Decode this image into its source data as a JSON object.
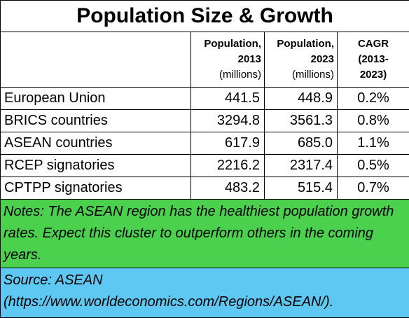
{
  "title": "Population Size & Growth",
  "headers": {
    "pop2013": [
      "Population,",
      "2013",
      "(millions)"
    ],
    "pop2023": [
      "Population,",
      "2023",
      "(millions)"
    ],
    "cagr": [
      "CAGR",
      "(2013-",
      "2023)"
    ]
  },
  "rows": [
    {
      "label": "European Union",
      "pop2013": "441.5",
      "pop2023": "448.9",
      "cagr": "0.2%"
    },
    {
      "label": "BRICS countries",
      "pop2013": "3294.8",
      "pop2023": "3561.3",
      "cagr": "0.8%"
    },
    {
      "label": "ASEAN countries",
      "pop2013": "617.9",
      "pop2023": "685.0",
      "cagr": "1.1%"
    },
    {
      "label": "RCEP signatories",
      "pop2013": "2216.2",
      "pop2023": "2317.4",
      "cagr": "0.5%"
    },
    {
      "label": "CPTPP signatories",
      "pop2013": "483.2",
      "pop2023": "515.4",
      "cagr": "0.7%"
    }
  ],
  "notes": "Notes: The ASEAN region has the healthiest population growth rates. Expect this cluster to outperform others in the coming years.",
  "source": "Source: ASEAN (https://www.worldeconomics.com/Regions/ASEAN/).",
  "colors": {
    "notes_bg": "#4cd14f",
    "source_bg": "#5ec8f2"
  }
}
